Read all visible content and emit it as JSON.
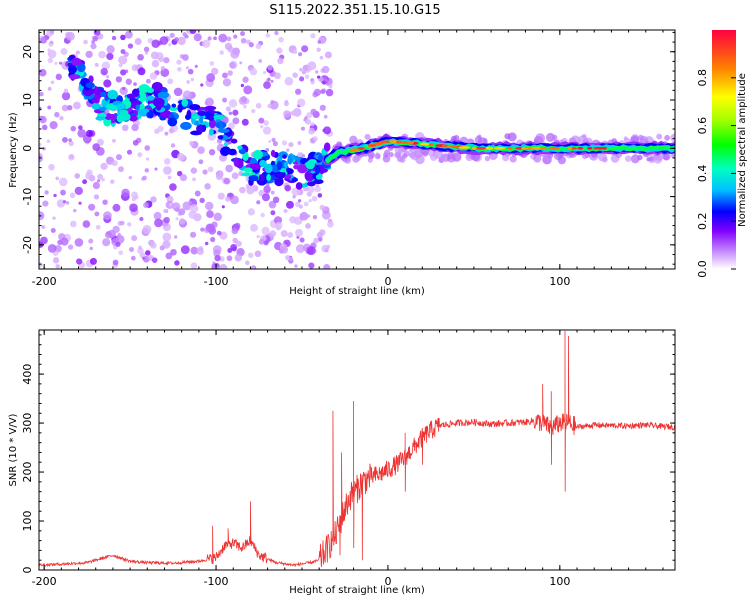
{
  "title": "S115.2022.351.15.10.G15",
  "chart_data": [
    {
      "type": "heatmap",
      "xlabel": "Height of straight line (km)",
      "ylabel": "Frequency (Hz)",
      "xlim": [
        -203,
        167
      ],
      "ylim": [
        -25,
        24.5
      ],
      "xticks": [
        -200,
        -100,
        0,
        100
      ],
      "yticks": [
        -20,
        -10,
        0,
        10,
        20
      ],
      "colorbar": {
        "label": "Normalized spectral amplitude",
        "range": [
          0,
          1
        ],
        "ticks": [
          0.0,
          0.2,
          0.4,
          0.6,
          0.8
        ]
      },
      "ridge": [
        {
          "x": -200,
          "y": 22
        },
        {
          "x": -180,
          "y": 15
        },
        {
          "x": -165,
          "y": 8
        },
        {
          "x": -150,
          "y": 9
        },
        {
          "x": -135,
          "y": 10
        },
        {
          "x": -120,
          "y": 7
        },
        {
          "x": -100,
          "y": 5
        },
        {
          "x": -90,
          "y": -1
        },
        {
          "x": -80,
          "y": -4
        },
        {
          "x": -65,
          "y": -4
        },
        {
          "x": -50,
          "y": -5
        },
        {
          "x": -40,
          "y": -4
        },
        {
          "x": -30,
          "y": -1
        },
        {
          "x": -15,
          "y": 0
        },
        {
          "x": 0,
          "y": 1.5
        },
        {
          "x": 50,
          "y": 0
        },
        {
          "x": 100,
          "y": 0
        },
        {
          "x": 167,
          "y": 0
        }
      ]
    },
    {
      "type": "line",
      "xlabel": "Height of straight line (km)",
      "ylabel": "SNR (10 * V/V)",
      "xlim": [
        -203,
        167
      ],
      "ylim": [
        0,
        490
      ],
      "xticks": [
        -200,
        -100,
        0,
        100
      ],
      "yticks": [
        0,
        100,
        200,
        300,
        400
      ],
      "color": "#ee3333",
      "series": [
        {
          "points": [
            [
              -203,
              10
            ],
            [
              -190,
              12
            ],
            [
              -175,
              15
            ],
            [
              -165,
              25
            ],
            [
              -160,
              30
            ],
            [
              -150,
              18
            ],
            [
              -140,
              15
            ],
            [
              -125,
              14
            ],
            [
              -110,
              18
            ],
            [
              -100,
              25
            ],
            [
              -95,
              50
            ],
            [
              -90,
              55
            ],
            [
              -85,
              45
            ],
            [
              -80,
              60
            ],
            [
              -75,
              30
            ],
            [
              -65,
              15
            ],
            [
              -55,
              10
            ],
            [
              -45,
              15
            ],
            [
              -40,
              20
            ],
            [
              -35,
              45
            ],
            [
              -30,
              75
            ],
            [
              -28,
              95
            ],
            [
              -25,
              125
            ],
            [
              -22,
              150
            ],
            [
              -18,
              165
            ],
            [
              -15,
              180
            ],
            [
              -10,
              190
            ],
            [
              -5,
              195
            ],
            [
              0,
              205
            ],
            [
              5,
              215
            ],
            [
              10,
              230
            ],
            [
              15,
              250
            ],
            [
              20,
              270
            ],
            [
              25,
              285
            ],
            [
              30,
              295
            ],
            [
              40,
              300
            ],
            [
              50,
              302
            ],
            [
              60,
              298
            ],
            [
              70,
              300
            ],
            [
              80,
              302
            ],
            [
              85,
              305
            ],
            [
              90,
              300
            ],
            [
              95,
              290
            ],
            [
              100,
              300
            ],
            [
              105,
              300
            ],
            [
              110,
              292
            ],
            [
              120,
              296
            ],
            [
              130,
              295
            ],
            [
              140,
              294
            ],
            [
              150,
              296
            ],
            [
              160,
              293
            ],
            [
              167,
              292
            ]
          ],
          "spikes": [
            [
              -102,
              90
            ],
            [
              -93,
              85
            ],
            [
              -80,
              140
            ],
            [
              -32,
              325
            ],
            [
              -27,
              240
            ],
            [
              -20,
              345
            ],
            [
              -15,
              155
            ],
            [
              -10,
              190
            ],
            [
              10,
              280
            ],
            [
              90,
              380
            ],
            [
              95,
              365
            ],
            [
              103,
              488
            ],
            [
              105,
              478
            ]
          ],
          "dips": [
            [
              -28,
              30
            ],
            [
              -20,
              45
            ],
            [
              -15,
              20
            ],
            [
              10,
              160
            ],
            [
              20,
              215
            ],
            [
              95,
              215
            ],
            [
              103,
              160
            ]
          ]
        }
      ]
    }
  ]
}
